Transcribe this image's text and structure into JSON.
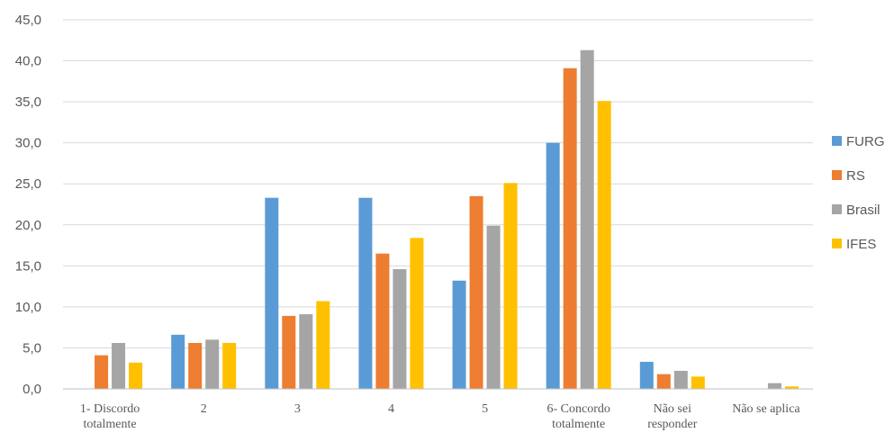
{
  "chart_data": {
    "type": "bar",
    "title": "",
    "xlabel": "",
    "ylabel": "",
    "ylim": [
      0,
      45
    ],
    "yticks": [
      "0,0",
      "5,0",
      "10,0",
      "15,0",
      "20,0",
      "25,0",
      "30,0",
      "35,0",
      "40,0",
      "45,0"
    ],
    "grid": true,
    "legend_position": "right",
    "categories": [
      [
        "1- Discordo",
        "totalmente"
      ],
      [
        "2"
      ],
      [
        "3"
      ],
      [
        "4"
      ],
      [
        "5"
      ],
      [
        "6- Concordo",
        "totalmente"
      ],
      [
        "Não sei",
        "responder"
      ],
      [
        "Não se aplica"
      ]
    ],
    "series": [
      {
        "name": "FURG",
        "color": "#5B9BD5",
        "values": [
          0.0,
          6.6,
          23.3,
          23.3,
          13.2,
          30.0,
          3.3,
          0.0
        ]
      },
      {
        "name": "RS",
        "color": "#ED7D31",
        "values": [
          4.1,
          5.6,
          8.9,
          16.5,
          23.5,
          39.1,
          1.8,
          0.0
        ]
      },
      {
        "name": "Brasil",
        "color": "#A5A5A5",
        "values": [
          5.6,
          6.0,
          9.1,
          14.6,
          19.9,
          41.3,
          2.2,
          0.7
        ]
      },
      {
        "name": "IFES",
        "color": "#FFC000",
        "values": [
          3.2,
          5.6,
          10.7,
          18.4,
          25.1,
          35.1,
          1.5,
          0.3
        ]
      }
    ]
  }
}
